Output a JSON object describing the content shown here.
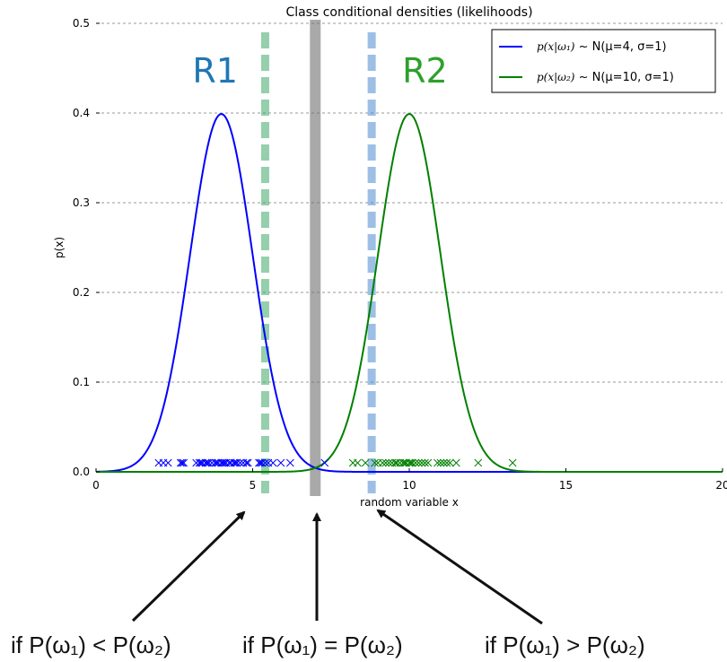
{
  "chart_data": {
    "type": "line",
    "title": "Class conditional densities (likelihoods)",
    "xlabel": "random variable x",
    "ylabel": "p(x)",
    "xlim": [
      0,
      20
    ],
    "ylim": [
      0,
      0.5
    ],
    "x_ticks": [
      "0",
      "5",
      "10",
      "15",
      "20"
    ],
    "y_ticks": [
      "0.0",
      "0.1",
      "0.2",
      "0.3",
      "0.4",
      "0.5"
    ],
    "grid": "horizontal dashed",
    "legend_position": "top-right",
    "series": [
      {
        "name": "p(x|ω₁) ~ N(μ=4, σ=1)",
        "legend_math": "p(x|ω₁)",
        "legend_rest": " ~ N(μ=4, σ=1)",
        "mu": 4,
        "sigma": 1,
        "color": "#0000ff"
      },
      {
        "name": "p(x|ω₂) ~ N(μ=10, σ=1)",
        "legend_math": "p(x|ω₂)",
        "legend_rest": " ~ N(μ=10, σ=1)",
        "mu": 10,
        "sigma": 1,
        "color": "#008000"
      }
    ],
    "samples": [
      {
        "series": 0,
        "y": 0.01,
        "marker": "x",
        "color": "#0000ff",
        "x": [
          2.0,
          2.15,
          2.3,
          2.7,
          2.75,
          2.8,
          3.2,
          3.3,
          3.35,
          3.4,
          3.5,
          3.55,
          3.6,
          3.7,
          3.8,
          3.85,
          3.9,
          4.0,
          4.05,
          4.1,
          4.15,
          4.25,
          4.3,
          4.4,
          4.45,
          4.5,
          4.6,
          4.7,
          4.8,
          4.85,
          5.2,
          5.25,
          5.3,
          5.4,
          5.5,
          5.65,
          5.9,
          6.2,
          7.3
        ]
      },
      {
        "series": 1,
        "y": 0.01,
        "marker": "x",
        "color": "#008000",
        "x": [
          8.2,
          8.35,
          8.6,
          8.9,
          9.0,
          9.15,
          9.25,
          9.35,
          9.45,
          9.55,
          9.6,
          9.7,
          9.8,
          9.85,
          9.9,
          10.0,
          10.05,
          10.1,
          10.2,
          10.3,
          10.4,
          10.5,
          10.6,
          10.9,
          11.0,
          11.1,
          11.2,
          11.3,
          11.5,
          12.2,
          13.3
        ]
      }
    ],
    "vertical_lines": [
      {
        "x": 5.4,
        "color": "#2ca05a",
        "style": "dashed",
        "alpha": 0.5
      },
      {
        "x": 7.0,
        "color": "#707070",
        "style": "solid",
        "alpha": 0.6
      },
      {
        "x": 8.8,
        "color": "#3c80cc",
        "style": "dashed",
        "alpha": 0.5
      }
    ],
    "region_labels": [
      {
        "text": "R1",
        "x": 3.8,
        "color": "#1f77b4"
      },
      {
        "text": "R2",
        "x": 10.5,
        "color": "#2ca02c"
      }
    ]
  },
  "annotations": [
    {
      "label": "if P(ω₁) < P(ω₂)",
      "points_to_x": 5.4
    },
    {
      "label": "if P(ω₁) = P(ω₂)",
      "points_to_x": 7.0
    },
    {
      "label": "if P(ω₁) > P(ω₂)",
      "points_to_x": 8.8
    }
  ]
}
